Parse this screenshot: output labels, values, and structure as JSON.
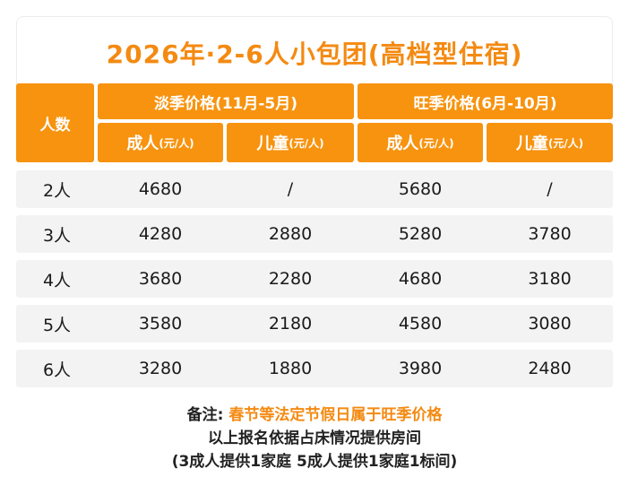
{
  "title": "2026年·2-6人小包团(高档型住宿)",
  "header": {
    "people": "人数",
    "low_season": "淡季价格(11月-5月)",
    "high_season": "旺季价格(6月-10月)",
    "adult": "成人",
    "child": "儿童",
    "unit": "(元/人)"
  },
  "rows": [
    {
      "people": "2人",
      "low_adult": "4680",
      "low_child": "/",
      "high_adult": "5680",
      "high_child": "/"
    },
    {
      "people": "3人",
      "low_adult": "4280",
      "low_child": "2880",
      "high_adult": "5280",
      "high_child": "3780"
    },
    {
      "people": "4人",
      "low_adult": "3680",
      "low_child": "2280",
      "high_adult": "4680",
      "high_child": "3180"
    },
    {
      "people": "5人",
      "low_adult": "3580",
      "low_child": "2180",
      "high_adult": "4580",
      "high_child": "3080"
    },
    {
      "people": "6人",
      "low_adult": "3280",
      "low_child": "1880",
      "high_adult": "3980",
      "high_child": "2480"
    }
  ],
  "notes": {
    "label": "备注:",
    "highlight": "春节等法定节假日属于旺季价格",
    "line2": "以上报名依据占床情况提供房间",
    "line3": "(3成人提供1家庭 5成人提供1家庭1标间)"
  },
  "colors": {
    "accent": "#f7930f",
    "title": "#f48a12",
    "row_bg": "#f3f3f3"
  }
}
